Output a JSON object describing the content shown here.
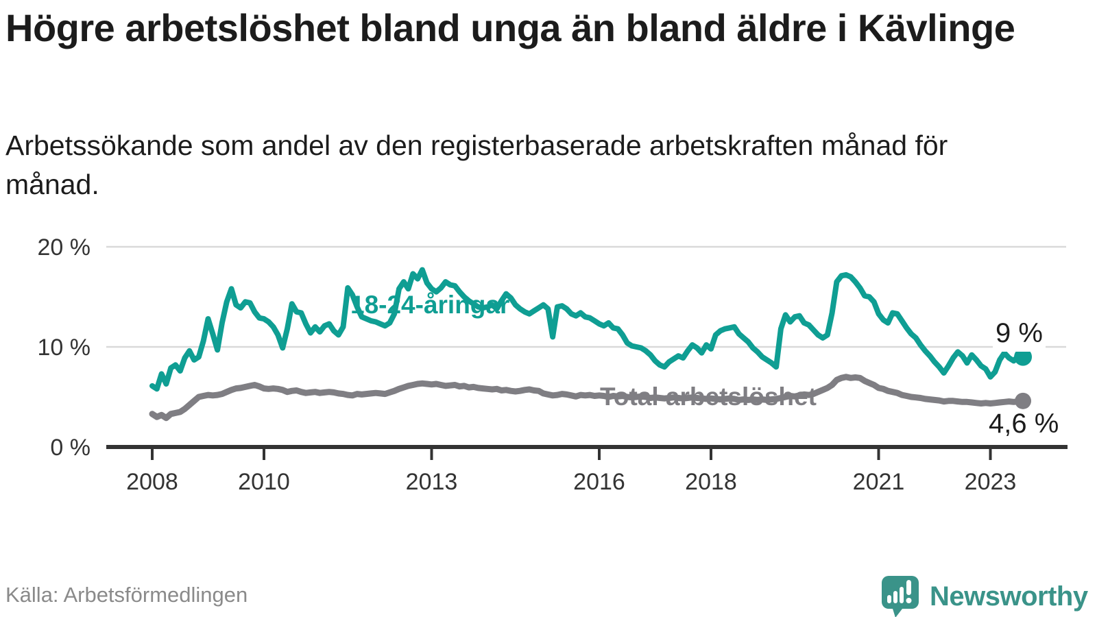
{
  "header": {
    "title": "Högre arbetslöshet bland unga än bland äldre i Kävlinge",
    "subtitle": "Arbetssökande som andel av den registerbaserade arbetskraften månad för månad."
  },
  "footer": {
    "source": "Källa: Arbetsförmedlingen",
    "logo_text": "Newsworthy"
  },
  "colors": {
    "teal": "#0f9e93",
    "gray": "#7f7e83",
    "logo_teal": "#3a9389",
    "grid": "#d9d9d9",
    "axis": "#333333",
    "text": "#1c1c1c"
  },
  "chart_data": {
    "type": "line",
    "title": "Högre arbetslöshet bland unga än bland äldre i Kävlinge",
    "subtitle": "Arbetssökande som andel av den registerbaserade arbetskraften månad för månad.",
    "x_start_year": 2008,
    "x_frequency": "monthly",
    "ylim": [
      0,
      21
    ],
    "grid": "horizontal",
    "yticks": [
      {
        "value": 0,
        "label": "0 %"
      },
      {
        "value": 10,
        "label": "10 %"
      },
      {
        "value": 20,
        "label": "20 %"
      }
    ],
    "xticks": [
      {
        "year": 2008,
        "label": "2008"
      },
      {
        "year": 2010,
        "label": "2010"
      },
      {
        "year": 2013,
        "label": "2013"
      },
      {
        "year": 2016,
        "label": "2016"
      },
      {
        "year": 2018,
        "label": "2018"
      },
      {
        "year": 2021,
        "label": "2021"
      },
      {
        "year": 2023,
        "label": "2023"
      }
    ],
    "series": [
      {
        "name": "18-24-åringar",
        "color": "#0f9e93",
        "end_label": "9 %",
        "last_value": 9.0,
        "values": [
          6.1,
          5.8,
          7.3,
          6.3,
          7.9,
          8.2,
          7.6,
          8.9,
          9.6,
          8.7,
          9.0,
          10.6,
          12.8,
          11.3,
          9.7,
          12.4,
          14.5,
          15.8,
          14.2,
          13.9,
          14.5,
          14.4,
          13.5,
          12.9,
          12.8,
          12.5,
          12.0,
          11.2,
          9.9,
          11.8,
          14.3,
          13.5,
          13.4,
          12.3,
          11.4,
          12.0,
          11.5,
          12.1,
          12.3,
          11.6,
          11.2,
          12.0,
          15.9,
          15.2,
          14.0,
          13.0,
          12.8,
          12.6,
          12.5,
          12.3,
          12.1,
          12.4,
          13.3,
          15.8,
          16.5,
          15.8,
          17.3,
          16.8,
          17.7,
          16.4,
          15.8,
          15.5,
          15.9,
          16.5,
          16.2,
          16.1,
          15.5,
          15.0,
          14.6,
          14.3,
          14.0,
          13.9,
          14.0,
          14.2,
          13.8,
          14.6,
          15.3,
          14.9,
          14.2,
          13.8,
          13.5,
          13.3,
          13.6,
          13.9,
          14.2,
          13.8,
          11.0,
          14.0,
          14.1,
          13.8,
          13.3,
          13.1,
          13.4,
          13.0,
          12.9,
          12.6,
          12.3,
          12.1,
          12.4,
          11.9,
          11.8,
          11.2,
          10.4,
          10.1,
          10.0,
          9.9,
          9.6,
          9.2,
          8.6,
          8.2,
          8.0,
          8.5,
          8.8,
          9.1,
          8.9,
          9.6,
          10.2,
          9.9,
          9.4,
          10.2,
          9.8,
          11.2,
          11.6,
          11.8,
          11.9,
          12.0,
          11.3,
          10.9,
          10.5,
          9.9,
          9.5,
          9.0,
          8.7,
          8.4,
          8.0,
          11.8,
          13.2,
          12.5,
          13.0,
          13.1,
          12.4,
          12.2,
          11.7,
          11.2,
          10.9,
          11.2,
          13.4,
          16.5,
          17.1,
          17.2,
          17.0,
          16.5,
          15.9,
          15.1,
          15.0,
          14.5,
          13.3,
          12.7,
          12.4,
          13.4,
          13.3,
          12.6,
          11.9,
          11.3,
          10.9,
          10.2,
          9.6,
          9.1,
          8.5,
          8.0,
          7.4,
          8.1,
          8.9,
          9.5,
          9.1,
          8.4,
          9.2,
          8.7,
          8.1,
          7.8,
          7.0,
          7.5,
          8.7,
          9.4,
          8.9,
          8.6,
          9.1,
          9.0
        ]
      },
      {
        "name": "Total arbetslöshet",
        "color": "#7f7e83",
        "end_label": "4,6 %",
        "last_value": 4.6,
        "values": [
          3.3,
          3.0,
          3.2,
          2.9,
          3.3,
          3.4,
          3.5,
          3.8,
          4.2,
          4.6,
          5.0,
          5.1,
          5.2,
          5.15,
          5.2,
          5.3,
          5.5,
          5.7,
          5.85,
          5.9,
          6.0,
          6.1,
          6.2,
          6.05,
          5.85,
          5.8,
          5.85,
          5.8,
          5.7,
          5.5,
          5.6,
          5.65,
          5.5,
          5.4,
          5.45,
          5.5,
          5.4,
          5.45,
          5.5,
          5.45,
          5.35,
          5.3,
          5.2,
          5.15,
          5.3,
          5.25,
          5.3,
          5.35,
          5.4,
          5.35,
          5.3,
          5.45,
          5.6,
          5.8,
          5.95,
          6.1,
          6.2,
          6.3,
          6.35,
          6.3,
          6.25,
          6.3,
          6.2,
          6.1,
          6.15,
          6.2,
          6.05,
          6.1,
          5.95,
          6.0,
          5.9,
          5.85,
          5.8,
          5.75,
          5.8,
          5.65,
          5.7,
          5.6,
          5.55,
          5.6,
          5.7,
          5.75,
          5.65,
          5.6,
          5.35,
          5.25,
          5.15,
          5.2,
          5.3,
          5.25,
          5.15,
          5.05,
          5.2,
          5.15,
          5.2,
          5.1,
          5.15,
          5.1,
          5.0,
          5.1,
          5.05,
          5.1,
          5.0,
          4.95,
          5.0,
          5.05,
          5.0,
          4.9,
          4.95,
          4.9,
          4.85,
          4.9,
          4.95,
          4.9,
          4.85,
          4.9,
          4.95,
          4.9,
          4.85,
          4.8,
          4.85,
          4.8,
          4.75,
          4.8,
          4.85,
          4.8,
          4.7,
          4.75,
          4.7,
          4.75,
          4.7,
          4.75,
          4.7,
          4.75,
          4.8,
          4.9,
          5.0,
          5.1,
          5.05,
          5.15,
          5.25,
          5.2,
          5.3,
          5.5,
          5.7,
          5.9,
          6.2,
          6.7,
          6.9,
          7.0,
          6.9,
          6.95,
          6.9,
          6.6,
          6.4,
          6.2,
          5.9,
          5.8,
          5.6,
          5.5,
          5.4,
          5.2,
          5.1,
          5.0,
          4.95,
          4.9,
          4.8,
          4.75,
          4.7,
          4.65,
          4.55,
          4.6,
          4.6,
          4.55,
          4.5,
          4.5,
          4.45,
          4.4,
          4.35,
          4.4,
          4.35,
          4.4,
          4.45,
          4.5,
          4.55,
          4.5,
          4.55,
          4.6
        ]
      }
    ]
  }
}
